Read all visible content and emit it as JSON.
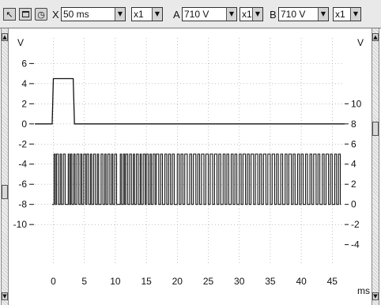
{
  "toolbar": {
    "timebase_axis_label": "X",
    "timebase_value": "50 ms",
    "timebase_multiplier": "x1",
    "channel_a_label": "A",
    "channel_a_range": "710 V",
    "channel_a_multiplier": "x1",
    "channel_b_label": "B",
    "channel_b_range": "710 V",
    "channel_b_multiplier": "x1",
    "icons": [
      "cursor-icon",
      "window-icon",
      "stopwatch-icon"
    ]
  },
  "scrollbars": {
    "icons": [
      "scroll-up-arrow-icon",
      "scroll-down-arrow-icon"
    ]
  },
  "chart_data": {
    "type": "line",
    "left_axis_unit": "V",
    "right_axis_unit": "V",
    "x_unit": "ms",
    "x_ticks": [
      0,
      5,
      10,
      15,
      20,
      25,
      30,
      35,
      40,
      45
    ],
    "xlim": [
      -3,
      47
    ],
    "left_ticks": [
      6,
      4,
      2,
      0,
      -2,
      -4,
      -6,
      -8,
      -10
    ],
    "left_ylim": [
      -13.6,
      7.6
    ],
    "right_ticks": [
      10,
      8,
      6,
      4,
      2,
      0,
      -2,
      -4
    ],
    "right_ylim": [
      -5.6,
      15.6
    ],
    "grid": true,
    "colors": {
      "trace": "#111111",
      "grid": "#9a9a9a"
    },
    "series": [
      {
        "axis": "left",
        "points": [
          [
            -3,
            0
          ],
          [
            -0.2,
            0
          ],
          [
            0,
            4.5
          ],
          [
            3.2,
            4.5
          ],
          [
            3.4,
            0
          ],
          [
            47,
            0
          ]
        ]
      },
      {
        "axis": "right",
        "low": 0,
        "high": 5,
        "transitions": [
          0.1,
          0.3,
          0.5,
          0.8,
          1.1,
          1.3,
          1.6,
          1.9,
          2.4,
          2.6,
          2.8,
          3.0,
          3.3,
          3.5,
          3.8,
          4.1,
          4.4,
          4.6,
          4.9,
          5.2,
          5.4,
          5.7,
          6.0,
          6.2,
          6.5,
          6.8,
          7.1,
          7.3,
          7.7,
          8.0,
          8.3,
          8.5,
          8.8,
          9.1,
          9.4,
          9.6,
          9.9,
          10.2,
          10.8,
          11.0,
          11.3,
          11.5,
          11.7,
          12.0,
          12.3,
          12.6,
          12.9,
          13.1,
          13.4,
          13.7,
          14.0,
          14.2,
          14.5,
          14.8,
          15.0,
          15.3,
          15.6,
          15.8,
          16.1,
          16.4,
          16.6,
          17.0,
          17.3,
          17.6,
          18.0,
          18.3,
          18.6,
          18.9,
          19.2,
          19.5,
          20.0,
          20.3,
          20.6,
          20.9,
          21.2,
          21.6,
          22.0,
          22.3,
          22.6,
          23.0,
          23.3,
          23.6,
          23.9,
          24.3,
          24.6,
          25.0,
          25.3,
          25.7,
          26.0,
          26.4,
          26.7,
          27.0,
          27.4,
          27.7,
          28.0,
          28.3,
          28.7,
          29.0,
          29.3,
          29.6,
          30.0,
          30.3,
          30.6,
          31.0,
          31.3,
          31.6,
          31.9,
          32.3,
          32.6,
          33.0,
          33.3,
          33.6,
          33.9,
          34.3,
          34.6,
          35.0,
          35.3,
          35.7,
          36.0,
          36.3,
          36.7,
          37.0,
          37.4,
          37.7,
          38.0,
          38.4,
          38.7,
          39.0,
          39.4,
          39.7,
          40.0,
          40.3,
          40.7,
          41.0,
          41.4,
          41.7,
          42.0,
          42.4,
          42.7,
          43.0,
          43.4,
          43.7,
          44.0,
          44.4,
          44.7,
          45.0,
          45.4,
          45.7,
          46.0,
          46.3
        ]
      }
    ]
  }
}
